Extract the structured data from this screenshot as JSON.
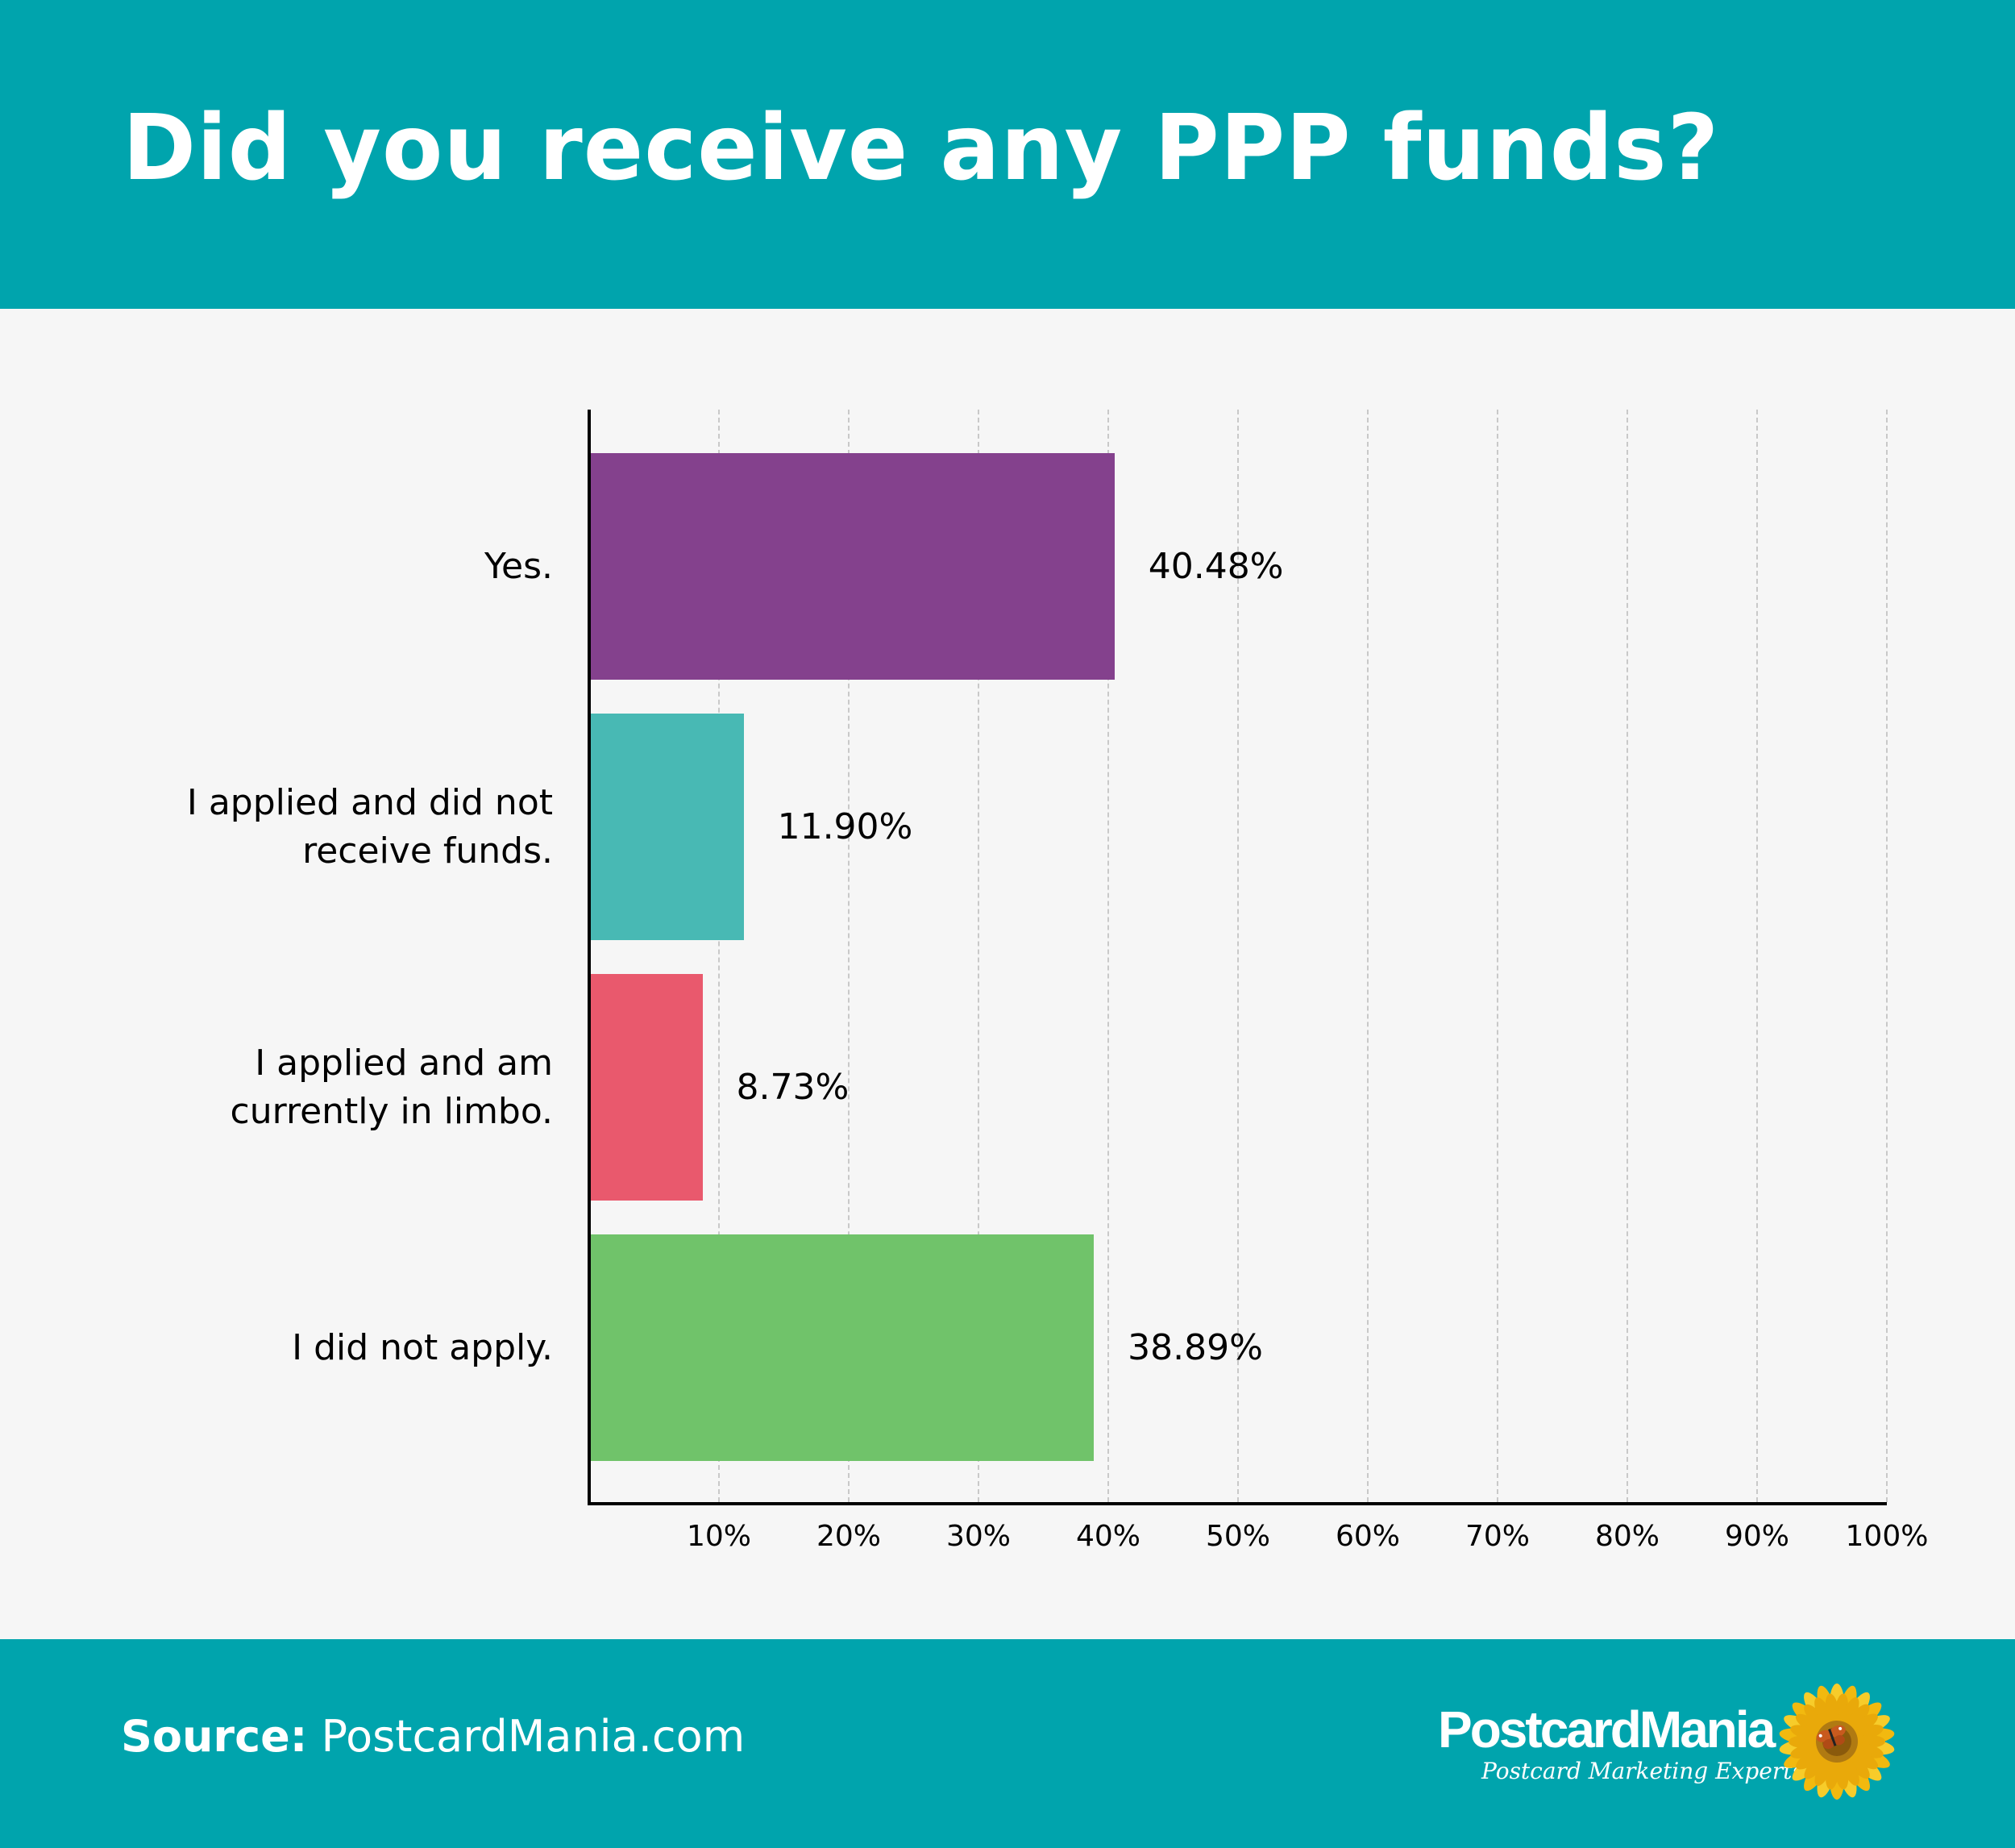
{
  "header": {
    "title": "Did you receive any PPP funds?",
    "background_color": "#00A4AD"
  },
  "chart_data": {
    "type": "bar",
    "orientation": "horizontal",
    "title": "Did you receive any PPP funds?",
    "xlabel": "",
    "ylabel": "",
    "xlim": [
      0,
      100
    ],
    "grid": true,
    "categories": [
      "Yes.",
      "I applied and did not receive funds.",
      "I applied and am currently in limbo.",
      "I did not apply."
    ],
    "category_label_lines": [
      [
        "Yes."
      ],
      [
        "I applied and did not",
        "receive funds."
      ],
      [
        "I applied and am",
        "currently in limbo."
      ],
      [
        "I did not apply."
      ]
    ],
    "values": [
      40.48,
      11.9,
      8.73,
      38.89
    ],
    "value_labels": [
      "40.48%",
      "11.90%",
      "8.73%",
      "38.89%"
    ],
    "colors": [
      "#84418D",
      "#48B9B4",
      "#E9596D",
      "#70C36A"
    ],
    "x_ticks": [
      "10%",
      "20%",
      "30%",
      "40%",
      "50%",
      "60%",
      "70%",
      "80%",
      "90%",
      "100%"
    ],
    "x_tick_values": [
      10,
      20,
      30,
      40,
      50,
      60,
      70,
      80,
      90,
      100
    ]
  },
  "footer": {
    "source_label": "Source:",
    "source_value": "PostcardMania.com",
    "background_color": "#00A4AD"
  },
  "logo": {
    "name": "PostcardMania",
    "tagline": "Postcard Marketing Experts",
    "icon": "sunflower-butterfly-icon"
  }
}
